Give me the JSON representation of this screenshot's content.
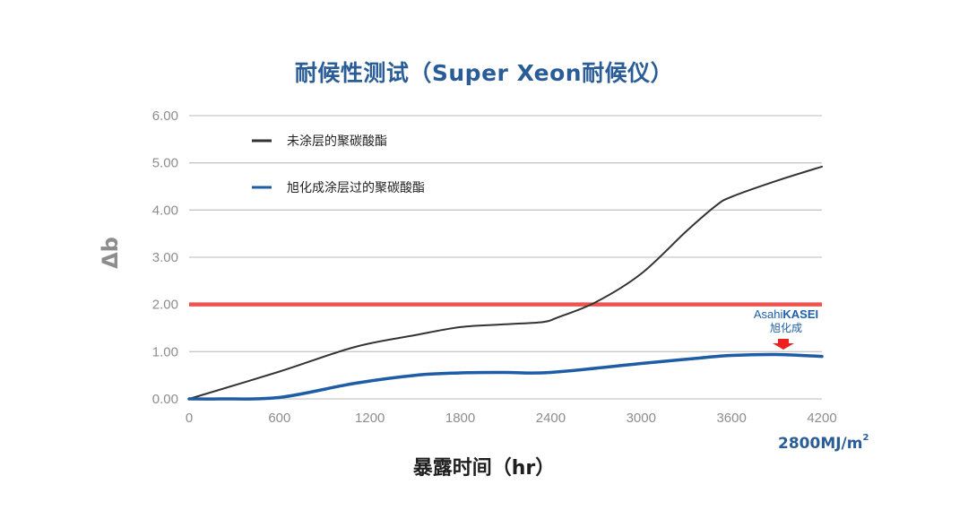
{
  "chart_data": {
    "type": "line",
    "title": "耐候性测试（Super Xeon耐候仪）",
    "xlabel": "暴露时间（hr）",
    "ylabel": "Δb",
    "x_unit_note": "2800MJ/m",
    "x_unit_sup": "2",
    "xlim": [
      0,
      4200
    ],
    "ylim": [
      0,
      6
    ],
    "xticks": [
      0,
      600,
      1200,
      1800,
      2400,
      3000,
      3600,
      4200
    ],
    "yticks": [
      "0.00",
      "1.00",
      "2.00",
      "3.00",
      "4.00",
      "5.00",
      "6.00"
    ],
    "grid": true,
    "legend_position": "top-left",
    "reference_line": {
      "y": 2.0,
      "color": "#f0524f"
    },
    "series": [
      {
        "name": "未涂层的聚碳酸酯",
        "color": "#333333",
        "x": [
          0,
          600,
          1100,
          1500,
          1800,
          2100,
          2350,
          2450,
          2700,
          3000,
          3300,
          3500,
          3600,
          3900,
          4200
        ],
        "y": [
          0,
          0.58,
          1.1,
          1.35,
          1.52,
          1.58,
          1.63,
          1.73,
          2.05,
          2.65,
          3.55,
          4.1,
          4.28,
          4.62,
          4.92
        ]
      },
      {
        "name": "旭化成涂层过的聚碳酸酯",
        "color": "#1e5ca6",
        "x": [
          0,
          200,
          600,
          1100,
          1500,
          1800,
          2100,
          2400,
          3000,
          3400,
          3600,
          3900,
          4200
        ],
        "y": [
          0,
          0.0,
          0.03,
          0.33,
          0.5,
          0.55,
          0.56,
          0.56,
          0.75,
          0.87,
          0.92,
          0.94,
          0.9
        ]
      }
    ]
  },
  "brand": {
    "name_light": "Asahi",
    "name_bold": "KASEI",
    "name_cn": "旭化成",
    "arrow_color": "#ee1f1f"
  }
}
